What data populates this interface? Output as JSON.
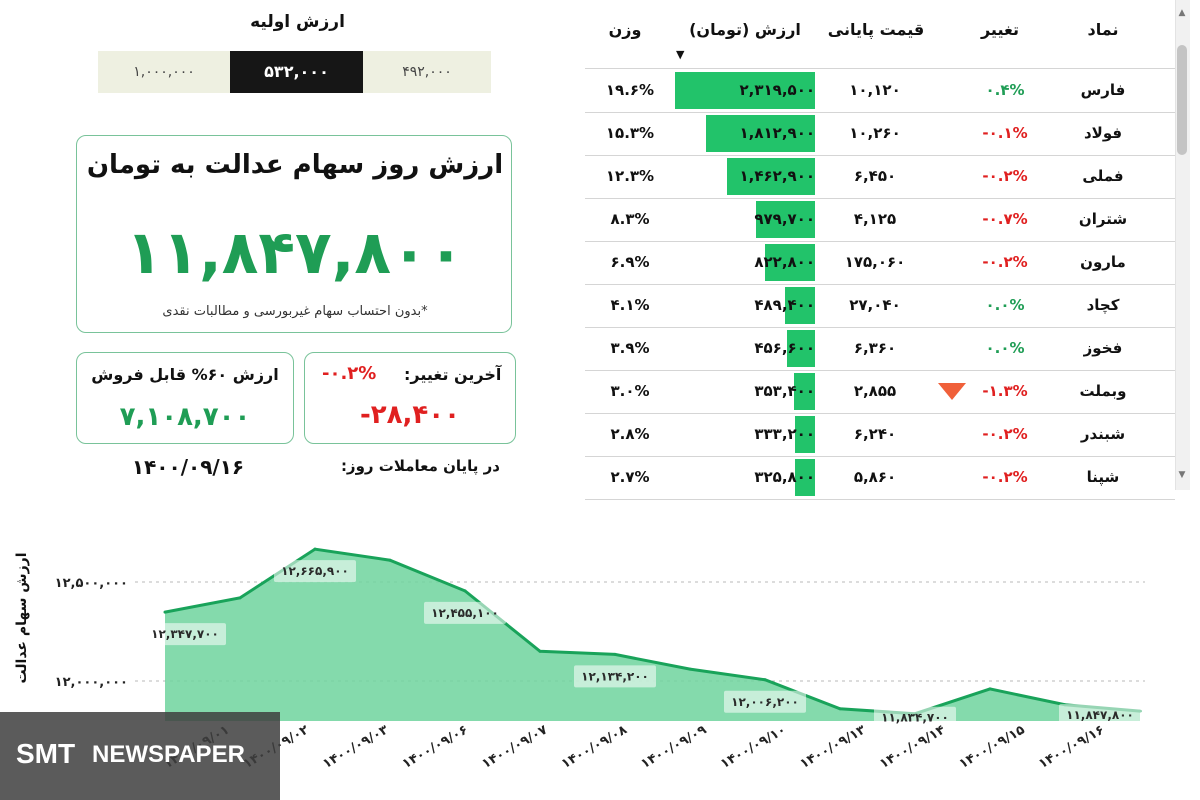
{
  "initial_value": {
    "title": "ارزش اولیه",
    "options": [
      "۴۹۲,۰۰۰",
      "۵۳۲,۰۰۰",
      "۱,۰۰۰,۰۰۰"
    ],
    "selected": "۵۳۲,۰۰۰"
  },
  "main_card": {
    "title": "ارزش روز سهام عدالت به تومان",
    "value": "۱۱,۸۴۷,۸۰۰",
    "note": "*بدون احتساب سهام غیربورسی و مطالبات نقدی"
  },
  "sellable_card": {
    "label": "ارزش ۶۰% قابل فروش",
    "value": "۷,۱۰۸,۷۰۰"
  },
  "change_card": {
    "label": "آخرین تغییر:",
    "percent": "-۰.۲%",
    "value": "-۲۸,۴۰۰"
  },
  "footer": {
    "label": "در پایان معاملات روز:",
    "date": "۱۴۰۰/۰۹/۱۶"
  },
  "table": {
    "headers": {
      "symbol": "نماد",
      "change": "تغییر",
      "close": "قیمت پایانی",
      "value": "ارزش (تومان)",
      "weight": "وزن"
    },
    "sort_icon": "caret-down-icon",
    "rows": [
      {
        "symbol": "فارس",
        "change": "۰.۴%",
        "change_dir": "pos",
        "close": "۱۰,۱۲۰",
        "value": "۲,۳۱۹,۵۰۰",
        "value_num": 2319500,
        "weight": "۱۹.۶%"
      },
      {
        "symbol": "فولاد",
        "change": "-۰.۱%",
        "change_dir": "neg",
        "close": "۱۰,۲۶۰",
        "value": "۱,۸۱۲,۹۰۰",
        "value_num": 1812900,
        "weight": "۱۵.۳%"
      },
      {
        "symbol": "فملی",
        "change": "-۰.۲%",
        "change_dir": "neg",
        "close": "۶,۴۵۰",
        "value": "۱,۴۶۲,۹۰۰",
        "value_num": 1462900,
        "weight": "۱۲.۳%"
      },
      {
        "symbol": "شتران",
        "change": "-۰.۷%",
        "change_dir": "neg",
        "close": "۴,۱۲۵",
        "value": "۹۷۹,۷۰۰",
        "value_num": 979700,
        "weight": "۸.۳%"
      },
      {
        "symbol": "مارون",
        "change": "-۰.۲%",
        "change_dir": "neg",
        "close": "۱۷۵,۰۶۰",
        "value": "۸۲۲,۸۰۰",
        "value_num": 822800,
        "weight": "۶.۹%"
      },
      {
        "symbol": "کچاد",
        "change": "۰.۰%",
        "change_dir": "pos",
        "close": "۲۷,۰۴۰",
        "value": "۴۸۹,۴۰۰",
        "value_num": 489400,
        "weight": "۴.۱%"
      },
      {
        "symbol": "فخوز",
        "change": "۰.۰%",
        "change_dir": "pos",
        "close": "۶,۳۶۰",
        "value": "۴۵۶,۶۰۰",
        "value_num": 456600,
        "weight": "۳.۹%"
      },
      {
        "symbol": "وبملت",
        "change": "-۱.۳%",
        "change_dir": "neg",
        "close": "۲,۸۵۵",
        "value": "۳۵۳,۴۰۰",
        "value_num": 353400,
        "weight": "۳.۰%",
        "marker": "down-triangle-icon"
      },
      {
        "symbol": "شبندر",
        "change": "-۰.۲%",
        "change_dir": "neg",
        "close": "۶,۲۴۰",
        "value": "۳۳۳,۲۰۰",
        "value_num": 333200,
        "weight": "۲.۸%"
      },
      {
        "symbol": "شپنا",
        "change": "-۰.۲%",
        "change_dir": "neg",
        "close": "۵,۸۶۰",
        "value": "۳۲۵,۸۰۰",
        "value_num": 325800,
        "weight": "۲.۷%"
      }
    ]
  },
  "chart_data": {
    "type": "area",
    "ylabel": "ارزش سهام عدالت",
    "yticks": [
      {
        "value": 12000000,
        "label": "۱۲,۰۰۰,۰۰۰"
      },
      {
        "value": 12500000,
        "label": "۱۲,۵۰۰,۰۰۰"
      }
    ],
    "ylim": [
      11800000,
      12700000
    ],
    "x_ticks": [
      "۱۴۰۰/۰۹/۰۱",
      "۱۴۰۰/۰۹/۰۲",
      "۱۴۰۰/۰۹/۰۳",
      "۱۴۰۰/۰۹/۰۶",
      "۱۴۰۰/۰۹/۰۷",
      "۱۴۰۰/۰۹/۰۸",
      "۱۴۰۰/۰۹/۰۹",
      "۱۴۰۰/۰۹/۱۰",
      "۱۴۰۰/۰۹/۱۳",
      "۱۴۰۰/۰۹/۱۴",
      "۱۴۰۰/۰۹/۱۵",
      "۱۴۰۰/۰۹/۱۶"
    ],
    "series": [
      {
        "values": [
          12347700,
          12420000,
          12665900,
          12610000,
          12455100,
          12150000,
          12134200,
          12060000,
          12006200,
          11860000,
          11834700,
          11960000,
          11880000,
          11847800
        ]
      }
    ],
    "data_labels": [
      {
        "index": 0,
        "text": "۱۲,۳۴۷,۷۰۰"
      },
      {
        "index": 2,
        "text": "۱۲,۶۶۵,۹۰۰"
      },
      {
        "index": 4,
        "text": "۱۲,۴۵۵,۱۰۰"
      },
      {
        "index": 6,
        "text": "۱۲,۱۳۴,۲۰۰"
      },
      {
        "index": 8,
        "text": "۱۲,۰۰۶,۲۰۰"
      },
      {
        "index": 10,
        "text": "۱۱,۸۳۴,۷۰۰"
      },
      {
        "index": 13,
        "text": "۱۱,۸۴۷,۸۰۰"
      }
    ],
    "colors": {
      "line": "#19a35a",
      "fill": "#6fd39e",
      "label_bg": "#ffffff"
    },
    "grid": true
  },
  "logo": {
    "text": "SMT",
    "text2": "NEWSPAPER"
  }
}
